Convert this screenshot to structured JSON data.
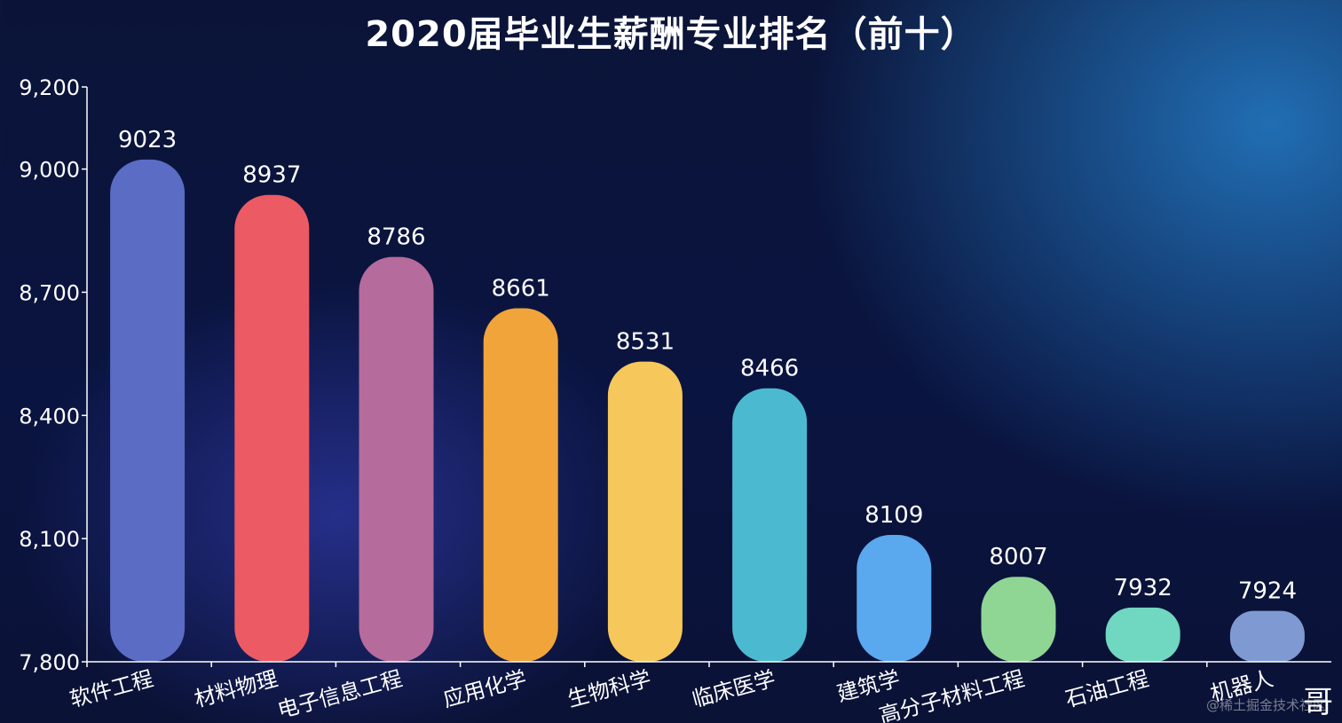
{
  "chart_data": {
    "type": "bar",
    "title": "2020届毕业生薪酬专业排名（前十）",
    "categories": [
      "软件工程",
      "材料物理",
      "电子信息工程",
      "应用化学",
      "生物科学",
      "临床医学",
      "建筑学",
      "高分子材料工程",
      "石油工程",
      "机器人"
    ],
    "values": [
      9023,
      8937,
      8786,
      8661,
      8531,
      8466,
      8109,
      8007,
      7932,
      7924
    ],
    "data_labels": [
      "9023",
      "8937",
      "8786",
      "8661",
      "8531",
      "8466",
      "8109",
      "8007",
      "7932",
      "7924"
    ],
    "colors": [
      "#5b6cc4",
      "#ec5a64",
      "#b56b9c",
      "#f0a43a",
      "#f6c75a",
      "#4bbad0",
      "#5aa8ee",
      "#8fd694",
      "#70d7c0",
      "#7f9ad2"
    ],
    "ylim": [
      7800,
      9200
    ],
    "yticks": [
      7800,
      8100,
      8400,
      8700,
      9000,
      9200
    ],
    "ytick_labels": [
      "7,800",
      "8,100",
      "8,400",
      "8,700",
      "9,000",
      "9,200"
    ],
    "xlabel": "",
    "ylabel": "",
    "grid": false,
    "legend": "none"
  },
  "watermark": {
    "text": "@稀土掘金技术社区",
    "glyph": "哥"
  }
}
